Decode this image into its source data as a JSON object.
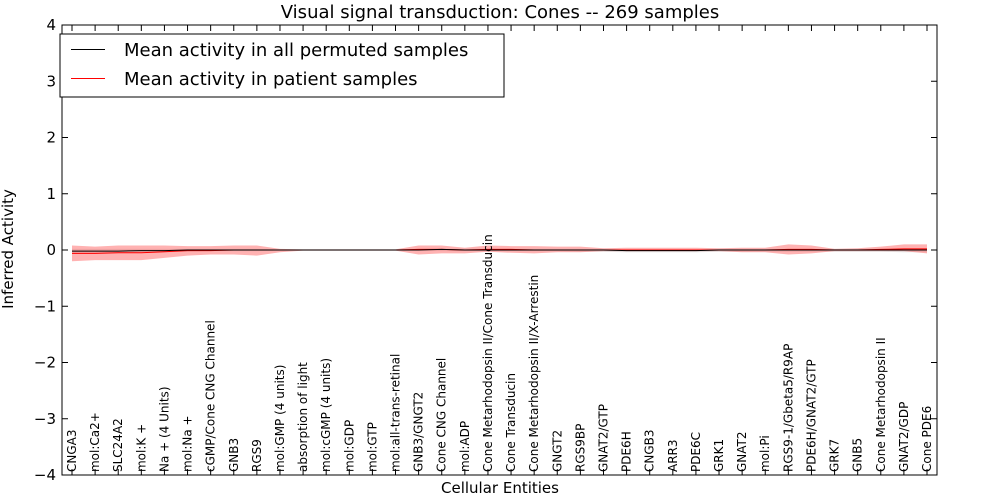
{
  "chart_data": {
    "type": "line",
    "title": "Visual signal transduction: Cones -- 269 samples",
    "xlabel": "Cellular Entities",
    "ylabel": "Inferred Activity",
    "ylim": [
      -4,
      4
    ],
    "yticks": [
      -4,
      -3,
      -2,
      -1,
      0,
      1,
      2,
      3,
      4
    ],
    "grid": false,
    "legend_position": "top-left",
    "categories": [
      "CNGA3",
      "mol:Ca2+",
      "SLC24A2",
      "mol:K +",
      "Na + (4 Units)",
      "mol:Na +",
      "cGMP/Cone CNG Channel",
      "GNB3",
      "RGS9",
      "mol:GMP (4 units)",
      "absorption of light",
      "mol:cGMP (4 units)",
      "mol:GDP",
      "mol:GTP",
      "mol:all-trans-retinal",
      "GNB3/GNGT2",
      "Cone CNG Channel",
      "mol:ADP",
      "Cone Metarhodopsin II/Cone Transducin",
      "Cone Transducin",
      "Cone Metarhodopsin II/X-Arrestin",
      "GNGT2",
      "RGS9BP",
      "GNAT2/GTP",
      "PDE6H",
      "CNGB3",
      "ARR3",
      "PDE6C",
      "GRK1",
      "GNAT2",
      "mol:Pi",
      "RGS9-1/Gbeta5/R9AP",
      "PDE6H/GNAT2/GTP",
      "GRK7",
      "GNB5",
      "Cone Metarhodopsin II",
      "GNAT2/GDP",
      "Cone PDE6"
    ],
    "series": [
      {
        "name": "Mean activity in all permuted samples",
        "color": "#000000",
        "band_color": "#bbbbbb",
        "values": [
          -0.02,
          -0.02,
          -0.02,
          -0.01,
          -0.01,
          0.0,
          0.0,
          0.0,
          0.0,
          0.0,
          0.0,
          0.0,
          0.0,
          0.0,
          0.0,
          0.0,
          0.01,
          0.0,
          0.0,
          0.0,
          0.0,
          0.0,
          0.0,
          0.0,
          -0.01,
          -0.01,
          -0.01,
          -0.01,
          0.0,
          0.0,
          0.0,
          0.0,
          0.0,
          0.0,
          0.0,
          0.0,
          0.0,
          0.0
        ],
        "lower": [
          -0.05,
          -0.05,
          -0.05,
          -0.05,
          -0.04,
          -0.03,
          -0.02,
          -0.02,
          -0.02,
          -0.01,
          -0.01,
          -0.01,
          -0.01,
          -0.01,
          -0.01,
          -0.01,
          -0.02,
          -0.02,
          -0.02,
          -0.02,
          -0.02,
          -0.02,
          -0.03,
          -0.03,
          -0.04,
          -0.04,
          -0.04,
          -0.04,
          -0.03,
          -0.03,
          -0.03,
          -0.03,
          -0.03,
          -0.03,
          -0.03,
          -0.03,
          -0.04,
          -0.04
        ],
        "upper": [
          0.02,
          0.02,
          0.02,
          0.02,
          0.02,
          0.02,
          0.02,
          0.02,
          0.02,
          0.01,
          0.01,
          0.01,
          0.01,
          0.01,
          0.01,
          0.02,
          0.02,
          0.02,
          0.02,
          0.02,
          0.02,
          0.02,
          0.02,
          0.02,
          0.01,
          0.01,
          0.01,
          0.01,
          0.02,
          0.02,
          0.02,
          0.02,
          0.02,
          0.02,
          0.02,
          0.02,
          0.02,
          0.02
        ]
      },
      {
        "name": "Mean activity in patient samples",
        "color": "#ff0000",
        "band_color": "#ff6666",
        "values": [
          -0.06,
          -0.06,
          -0.05,
          -0.05,
          -0.03,
          -0.01,
          -0.01,
          0.0,
          0.0,
          0.0,
          0.0,
          0.0,
          0.0,
          0.0,
          0.0,
          0.01,
          0.01,
          0.0,
          0.01,
          0.01,
          0.0,
          0.0,
          0.0,
          0.0,
          0.0,
          0.0,
          0.0,
          0.0,
          0.0,
          0.0,
          0.0,
          0.01,
          0.01,
          0.0,
          0.0,
          0.01,
          0.02,
          0.02
        ],
        "lower": [
          -0.2,
          -0.18,
          -0.18,
          -0.18,
          -0.14,
          -0.1,
          -0.08,
          -0.08,
          -0.1,
          -0.04,
          -0.01,
          -0.01,
          -0.01,
          -0.01,
          -0.01,
          -0.08,
          -0.06,
          -0.06,
          -0.03,
          -0.05,
          -0.06,
          -0.04,
          -0.04,
          -0.02,
          -0.02,
          -0.02,
          -0.02,
          -0.02,
          -0.02,
          -0.04,
          -0.04,
          -0.08,
          -0.06,
          -0.02,
          -0.02,
          -0.02,
          -0.02,
          -0.06
        ],
        "upper": [
          0.08,
          0.06,
          0.08,
          0.08,
          0.08,
          0.07,
          0.07,
          0.08,
          0.08,
          0.02,
          0.01,
          0.01,
          0.01,
          0.01,
          0.01,
          0.08,
          0.08,
          0.04,
          0.08,
          0.07,
          0.07,
          0.06,
          0.06,
          0.03,
          0.04,
          0.04,
          0.04,
          0.04,
          0.03,
          0.04,
          0.04,
          0.1,
          0.08,
          0.02,
          0.03,
          0.06,
          0.1,
          0.1
        ]
      }
    ]
  }
}
